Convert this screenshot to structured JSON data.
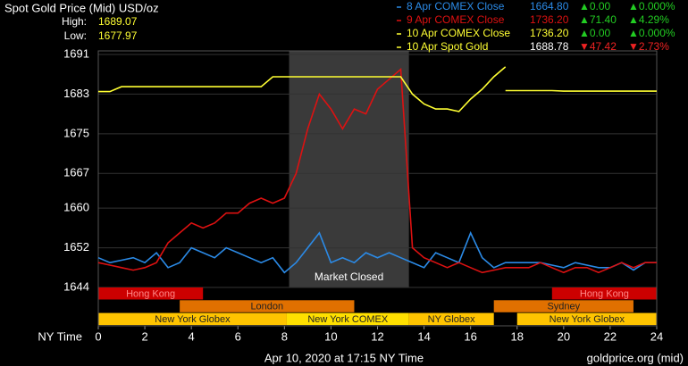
{
  "chart_data": {
    "type": "line",
    "title": "Spot Gold Price (Mid) USD/oz",
    "high_label": "High:",
    "high": "1689.07",
    "low_label": "Low:",
    "low": "1677.97",
    "x_label": "NY Time",
    "footer_left": "Apr 10, 2020 at 17:15 NY Time",
    "footer_right": "goldprice.org (mid)",
    "xlim": [
      0,
      24
    ],
    "xticks": [
      0,
      2,
      4,
      6,
      8,
      10,
      12,
      14,
      16,
      18,
      20,
      22,
      24
    ],
    "ylim": [
      1644,
      1691
    ],
    "yticks": [
      1691,
      1683,
      1675,
      1667,
      1660,
      1652,
      1644
    ],
    "grid": true,
    "x": [
      0,
      0.5,
      1,
      1.5,
      2,
      2.5,
      3,
      3.5,
      4,
      4.5,
      5,
      5.5,
      6,
      6.5,
      7,
      7.5,
      8,
      8.5,
      9,
      9.5,
      10,
      10.5,
      11,
      11.5,
      12,
      12.5,
      13,
      13.5,
      14,
      14.5,
      15,
      15.5,
      16,
      16.5,
      17,
      17.5,
      18,
      18.5,
      19,
      19.5,
      20,
      20.5,
      21,
      21.5,
      22,
      22.5,
      23,
      23.5,
      24
    ],
    "series": [
      {
        "name": "8 Apr COMEX Close",
        "color": "#2b8ae6",
        "close": "1664.80",
        "change": "▲0.00",
        "change_pct": "▲0.000%",
        "change_color": "#22cc22",
        "values": [
          1650,
          1649,
          1649.5,
          1650,
          1649,
          1651,
          1648,
          1649,
          1652,
          1651,
          1650,
          1652,
          1651,
          1650,
          1649,
          1650,
          1647,
          1649,
          1652,
          1655,
          1649,
          1650,
          1649,
          1651,
          1650,
          1651,
          1650,
          1649,
          1648,
          1651,
          1650,
          1649,
          1655,
          1650,
          1648,
          1649,
          1649,
          1649,
          1649,
          1648.5,
          1648,
          1649,
          1648.5,
          1648,
          1648,
          1649,
          1647.5,
          1649,
          1649
        ]
      },
      {
        "name": "9 Apr COMEX Close",
        "color": "#dd1111",
        "close": "1736.20",
        "change": "▲71.40",
        "change_pct": "▲4.29%",
        "change_color": "#22cc22",
        "values": [
          1649,
          1648.5,
          1648,
          1647.5,
          1648,
          1649,
          1653,
          1655,
          1657,
          1656,
          1657,
          1659,
          1659,
          1661,
          1662,
          1661,
          1662,
          1667,
          1676,
          1683,
          1680,
          1676,
          1680,
          1679,
          1684,
          1686,
          1688,
          1652,
          1650,
          1649,
          1648,
          1649,
          1648,
          1647,
          1647.5,
          1648,
          1648,
          1648,
          1649,
          1648,
          1647,
          1648,
          1648,
          1647,
          1648,
          1649,
          1648,
          1649,
          1649
        ]
      },
      {
        "name": "10 Apr COMEX Close",
        "color": "#ffff33",
        "close": "1736.20",
        "change": "▲0.00",
        "change_pct": "▲0.000%",
        "change_color": "#22cc22",
        "values": [
          null,
          null,
          null,
          null,
          null,
          null,
          null,
          null,
          null,
          null,
          null,
          null,
          null,
          null,
          null,
          null,
          null,
          null,
          null,
          null,
          null,
          null,
          null,
          null,
          null,
          null,
          null,
          null,
          null,
          null,
          null,
          null,
          null,
          null,
          null,
          1683.7,
          1683.7,
          1683.7,
          1683.7,
          1683.7,
          1683.6,
          1683.6,
          1683.6,
          1683.6,
          1683.6,
          1683.6,
          1683.6,
          1683.6,
          1683.6
        ]
      },
      {
        "name": "10 Apr Spot Gold",
        "color": "#ffff33",
        "close": "1688.78",
        "change": "▼47.42",
        "change_pct": "▼2.73%",
        "change_color": "#ee2222",
        "values": [
          1683.5,
          1683.5,
          1684.5,
          1684.5,
          1684.5,
          1684.5,
          1684.5,
          1684.5,
          1684.5,
          1684.5,
          1684.5,
          1684.5,
          1684.5,
          1684.5,
          1684.5,
          1686.5,
          1686.5,
          1686.5,
          1686.5,
          1686.5,
          1686.5,
          1686.5,
          1686.5,
          1686.5,
          1686.5,
          1686.5,
          1686.5,
          1683,
          1681,
          1680,
          1680,
          1679.5,
          1682,
          1684,
          1686.5,
          1688.5,
          null,
          null,
          null,
          null,
          null,
          null,
          null,
          null,
          null,
          null,
          null,
          null,
          null
        ]
      }
    ],
    "market_closed": {
      "label": "Market Closed",
      "start": 8.2,
      "end": 13.35
    },
    "sessions": [
      {
        "label": "Hong Kong",
        "start": 0,
        "end": 4.5,
        "row": 0,
        "color": "#cc0000",
        "text_color": "#ff8888"
      },
      {
        "label": "Hong Kong",
        "start": 19.5,
        "end": 24,
        "row": 0,
        "color": "#cc0000",
        "text_color": "#ff8888"
      },
      {
        "label": "London",
        "start": 3.5,
        "end": 11,
        "row": 1,
        "color": "#e07000",
        "text_color": "#222222"
      },
      {
        "label": "Sydney",
        "start": 17,
        "end": 23,
        "row": 1,
        "color": "#e07000",
        "text_color": "#222222"
      },
      {
        "label": "New York Globex",
        "start": 0,
        "end": 8.1,
        "row": 2,
        "color": "#ffc400",
        "text_color": "#222222"
      },
      {
        "label": "New York COMEX",
        "start": 8.1,
        "end": 13.35,
        "row": 2,
        "color": "#ffe000",
        "text_color": "#222222"
      },
      {
        "label": "NY Globex",
        "start": 13.35,
        "end": 17,
        "row": 2,
        "color": "#ffc400",
        "text_color": "#222222"
      },
      {
        "label": "New York Globex",
        "start": 18,
        "end": 24,
        "row": 2,
        "color": "#ffc400",
        "text_color": "#222222"
      }
    ]
  }
}
